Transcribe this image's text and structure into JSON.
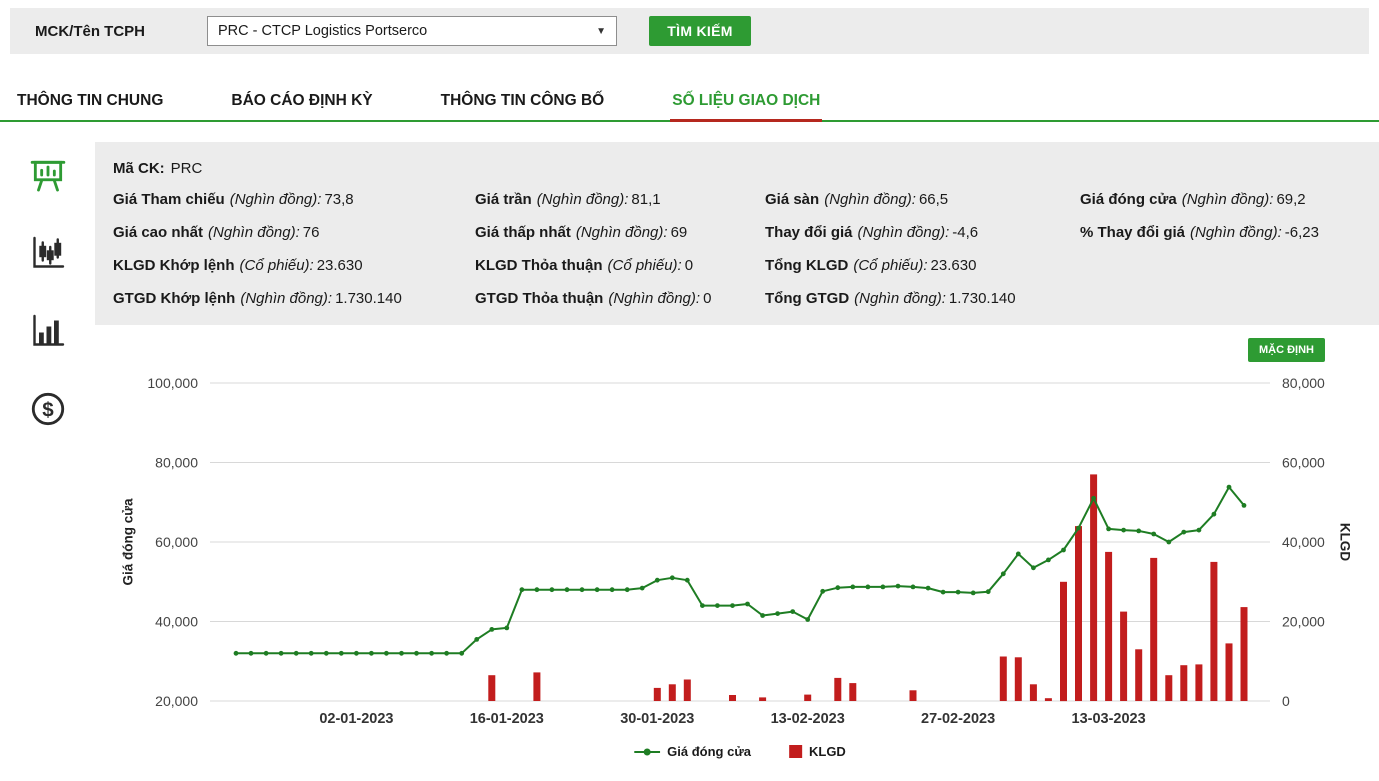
{
  "header": {
    "label": "MCK/Tên TCPH",
    "select_value": "PRC - CTCP Logistics Portserco",
    "caret_icon": "▼",
    "search_button": "TÌM KIẾM"
  },
  "tabs": [
    {
      "label": "THÔNG TIN CHUNG",
      "active": false
    },
    {
      "label": "BÁO CÁO ĐỊNH KỲ",
      "active": false
    },
    {
      "label": "THÔNG TIN CÔNG BỐ",
      "active": false
    },
    {
      "label": "SỐ LIỆU GIAO DỊCH",
      "active": true
    }
  ],
  "sidebar": {
    "items": [
      {
        "icon": "presentation-chart",
        "active": true
      },
      {
        "icon": "candlestick-chart",
        "active": false
      },
      {
        "icon": "bar-chart",
        "active": false
      },
      {
        "icon": "dollar-coin",
        "active": false
      }
    ]
  },
  "info": {
    "symbol_label": "Mã CK:",
    "symbol_value": "PRC",
    "rows": [
      [
        {
          "label": "Giá Tham chiếu",
          "unit": "(Nghìn đồng):",
          "value": "73,8"
        },
        {
          "label": "Giá trần",
          "unit": "(Nghìn đồng):",
          "value": "81,1"
        },
        {
          "label": "Giá sàn",
          "unit": "(Nghìn đồng):",
          "value": "66,5"
        },
        {
          "label": "Giá đóng cửa",
          "unit": "(Nghìn đồng):",
          "value": "69,2"
        }
      ],
      [
        {
          "label": "Giá cao nhất",
          "unit": "(Nghìn đồng):",
          "value": "76"
        },
        {
          "label": "Giá thấp nhất",
          "unit": "(Nghìn đồng):",
          "value": "69"
        },
        {
          "label": "Thay đổi giá",
          "unit": "(Nghìn đồng):",
          "value": "-4,6"
        },
        {
          "label": "% Thay đổi giá",
          "unit": "(Nghìn đồng):",
          "value": "-6,23"
        }
      ],
      [
        {
          "label": "KLGD Khớp lệnh",
          "unit": "(Cổ phiếu):",
          "value": "23.630"
        },
        {
          "label": "KLGD Thỏa thuận",
          "unit": "(Cổ phiếu):",
          "value": "0"
        },
        {
          "label": "Tổng KLGD",
          "unit": "(Cổ phiếu):",
          "value": "23.630"
        }
      ],
      [
        {
          "label": "GTGD Khớp lệnh",
          "unit": "(Nghìn đồng):",
          "value": "1.730.140"
        },
        {
          "label": "GTGD Thỏa thuận",
          "unit": "(Nghìn đồng):",
          "value": "0"
        },
        {
          "label": "Tổng GTGD",
          "unit": "(Nghìn đồng):",
          "value": "1.730.140"
        }
      ]
    ]
  },
  "chart": {
    "default_button": "MẶC ĐỊNH",
    "y_left_title": "Giá đóng cửa",
    "y_right_title": "KLGD",
    "legend": [
      {
        "label": "Giá đóng cửa",
        "type": "line",
        "color": "#1e7d23"
      },
      {
        "label": "KLGD",
        "type": "bar",
        "color": "#c21d1d"
      }
    ]
  },
  "colors": {
    "accent_green": "#2e9b33",
    "line_green": "#1e7d23",
    "bar_red": "#c21d1d",
    "tab_underline_red": "#b5281e",
    "panel_gray": "#ececec"
  },
  "chart_data": {
    "type": "line+bar",
    "x": [
      "21-12-2022",
      "22-12-2022",
      "23-12-2022",
      "26-12-2022",
      "27-12-2022",
      "28-12-2022",
      "29-12-2022",
      "30-12-2022",
      "02-01-2023",
      "03-01-2023",
      "04-01-2023",
      "05-01-2023",
      "06-01-2023",
      "09-01-2023",
      "10-01-2023",
      "11-01-2023",
      "12-01-2023",
      "13-01-2023",
      "16-01-2023",
      "17-01-2023",
      "18-01-2023",
      "19-01-2023",
      "20-01-2023",
      "23-01-2023",
      "24-01-2023",
      "25-01-2023",
      "26-01-2023",
      "27-01-2023",
      "30-01-2023",
      "31-01-2023",
      "01-02-2023",
      "02-02-2023",
      "03-02-2023",
      "06-02-2023",
      "07-02-2023",
      "08-02-2023",
      "09-02-2023",
      "10-02-2023",
      "13-02-2023",
      "14-02-2023",
      "15-02-2023",
      "16-02-2023",
      "17-02-2023",
      "20-02-2023",
      "21-02-2023",
      "22-02-2023",
      "23-02-2023",
      "24-02-2023",
      "27-02-2023",
      "28-02-2023",
      "01-03-2023",
      "02-03-2023",
      "03-03-2023",
      "06-03-2023",
      "07-03-2023",
      "08-03-2023",
      "09-03-2023",
      "10-03-2023",
      "13-03-2023",
      "14-03-2023",
      "15-03-2023",
      "16-03-2023",
      "17-03-2023",
      "20-03-2023",
      "21-03-2023",
      "22-03-2023",
      "23-03-2023",
      "24-03-2023"
    ],
    "x_tick_indices": [
      8,
      18,
      28,
      38,
      48,
      58
    ],
    "series": [
      {
        "name": "Giá đóng cửa",
        "type": "line",
        "axis": "left",
        "color": "#1e7d23",
        "values": [
          32000,
          32000,
          32000,
          32000,
          32000,
          32000,
          32000,
          32000,
          32000,
          32000,
          32000,
          32000,
          32000,
          32000,
          32000,
          32000,
          35500,
          38000,
          38400,
          48000,
          48000,
          48000,
          48000,
          48000,
          48000,
          48000,
          48000,
          48400,
          50400,
          51000,
          50400,
          44000,
          44000,
          44000,
          44400,
          41500,
          42000,
          42500,
          40500,
          47600,
          48500,
          48700,
          48700,
          48700,
          48900,
          48700,
          48400,
          47400,
          47400,
          47200,
          47500,
          52000,
          57000,
          53500,
          55500,
          58000,
          63500,
          71000,
          63300,
          63000,
          62800,
          62000,
          60000,
          62500,
          63000,
          67000,
          73800,
          69200
        ]
      },
      {
        "name": "KLGD",
        "type": "bar",
        "axis": "right",
        "color": "#c21d1d",
        "values": [
          0,
          0,
          0,
          0,
          0,
          0,
          0,
          0,
          0,
          0,
          0,
          0,
          0,
          0,
          0,
          0,
          0,
          6500,
          0,
          0,
          7200,
          0,
          0,
          0,
          0,
          0,
          0,
          0,
          3300,
          4200,
          5400,
          0,
          0,
          1500,
          0,
          900,
          0,
          0,
          1600,
          0,
          5800,
          4500,
          0,
          0,
          0,
          2700,
          0,
          0,
          0,
          0,
          0,
          11200,
          11000,
          4200,
          700,
          30000,
          44000,
          57000,
          37500,
          22500,
          13000,
          36000,
          6500,
          9000,
          9200,
          35000,
          14500,
          23630
        ]
      }
    ],
    "y_left": {
      "title": "Giá đóng cửa",
      "min": 20000,
      "max": 100000,
      "ticks": [
        20000,
        40000,
        60000,
        80000,
        100000
      ]
    },
    "y_right": {
      "title": "KLGD",
      "min": 0,
      "max": 80000,
      "ticks": [
        0,
        20000,
        40000,
        60000,
        80000
      ]
    },
    "grid": "horizontal",
    "legend_position": "bottom"
  }
}
